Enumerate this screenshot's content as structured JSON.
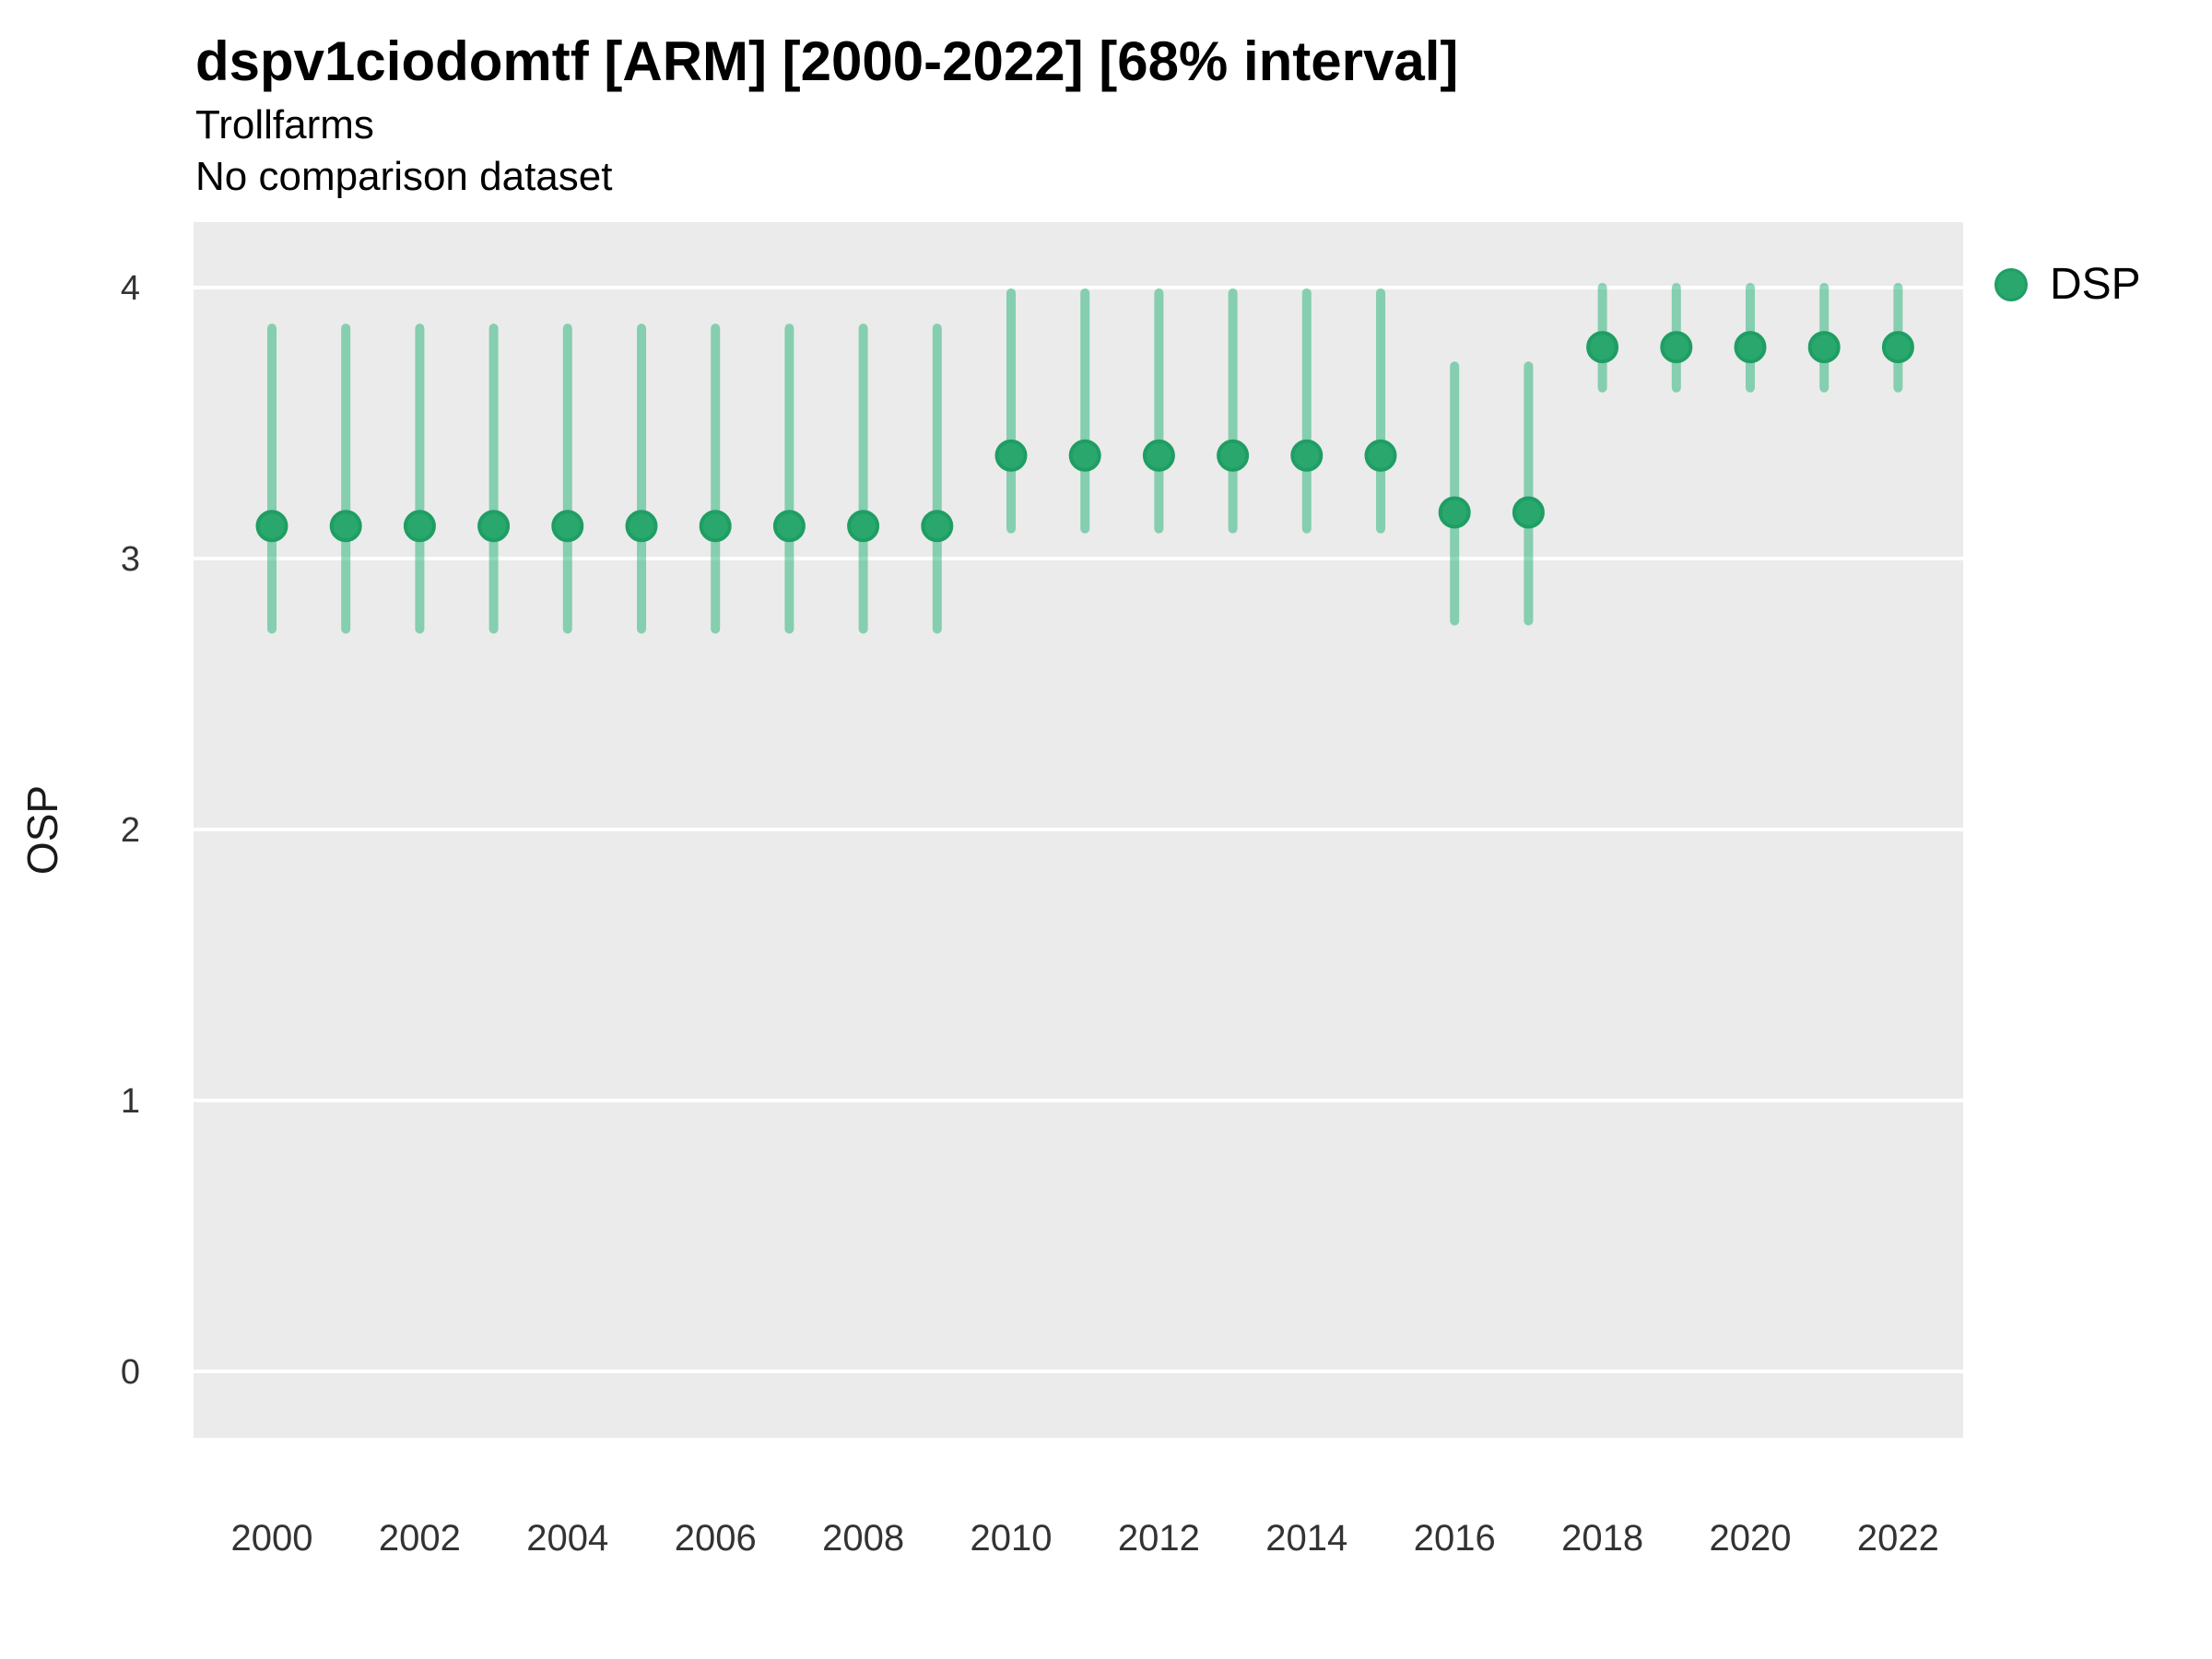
{
  "header": {
    "title": "dspv1ciodomtf [ARM] [2000-2022] [68% interval]",
    "subtitle": "Trollfarms",
    "note": "No comparison dataset"
  },
  "legend": {
    "label": "DSP"
  },
  "colors": {
    "panel_bg": "#ebebeb",
    "gridline": "#ffffff",
    "point_fill": "#2aa76d",
    "point_stroke": "#1f9e63",
    "interval": "rgba(31,178,115,0.5)",
    "tick_label": "#333333",
    "text": "#000000"
  },
  "chart_data": {
    "type": "scatter",
    "variant": "pointrange-interval",
    "title": "dspv1ciodomtf [ARM] [2000-2022] [68% interval]",
    "subtitle": "Trollfarms",
    "note": "No comparison dataset",
    "xlabel": "",
    "ylabel": "OSP",
    "interval_level": "68%",
    "legend_position": "right",
    "grid": "horizontal-major-only",
    "xlim": [
      1999,
      2023
    ],
    "ylim": [
      -0.26,
      4.24
    ],
    "x_ticks": [
      2000,
      2002,
      2004,
      2006,
      2008,
      2010,
      2012,
      2014,
      2016,
      2018,
      2020,
      2022
    ],
    "y_ticks": [
      0,
      1,
      2,
      3,
      4
    ],
    "series": [
      {
        "name": "DSP",
        "points": [
          {
            "year": 2000,
            "mid": 3.12,
            "lo": 2.74,
            "hi": 3.85
          },
          {
            "year": 2001,
            "mid": 3.12,
            "lo": 2.74,
            "hi": 3.85
          },
          {
            "year": 2002,
            "mid": 3.12,
            "lo": 2.74,
            "hi": 3.85
          },
          {
            "year": 2003,
            "mid": 3.12,
            "lo": 2.74,
            "hi": 3.85
          },
          {
            "year": 2004,
            "mid": 3.12,
            "lo": 2.74,
            "hi": 3.85
          },
          {
            "year": 2005,
            "mid": 3.12,
            "lo": 2.74,
            "hi": 3.85
          },
          {
            "year": 2006,
            "mid": 3.12,
            "lo": 2.74,
            "hi": 3.85
          },
          {
            "year": 2007,
            "mid": 3.12,
            "lo": 2.74,
            "hi": 3.85
          },
          {
            "year": 2008,
            "mid": 3.12,
            "lo": 2.74,
            "hi": 3.85
          },
          {
            "year": 2009,
            "mid": 3.12,
            "lo": 2.74,
            "hi": 3.85
          },
          {
            "year": 2010,
            "mid": 3.38,
            "lo": 3.11,
            "hi": 3.98
          },
          {
            "year": 2011,
            "mid": 3.38,
            "lo": 3.11,
            "hi": 3.98
          },
          {
            "year": 2012,
            "mid": 3.38,
            "lo": 3.11,
            "hi": 3.98
          },
          {
            "year": 2013,
            "mid": 3.38,
            "lo": 3.11,
            "hi": 3.98
          },
          {
            "year": 2014,
            "mid": 3.38,
            "lo": 3.11,
            "hi": 3.98
          },
          {
            "year": 2015,
            "mid": 3.38,
            "lo": 3.11,
            "hi": 3.98
          },
          {
            "year": 2016,
            "mid": 3.17,
            "lo": 2.77,
            "hi": 3.71
          },
          {
            "year": 2017,
            "mid": 3.17,
            "lo": 2.77,
            "hi": 3.71
          },
          {
            "year": 2018,
            "mid": 3.78,
            "lo": 3.63,
            "hi": 4.0
          },
          {
            "year": 2019,
            "mid": 3.78,
            "lo": 3.63,
            "hi": 4.0
          },
          {
            "year": 2020,
            "mid": 3.78,
            "lo": 3.63,
            "hi": 4.0
          },
          {
            "year": 2021,
            "mid": 3.78,
            "lo": 3.63,
            "hi": 4.0
          },
          {
            "year": 2022,
            "mid": 3.78,
            "lo": 3.63,
            "hi": 4.0
          }
        ]
      }
    ]
  }
}
